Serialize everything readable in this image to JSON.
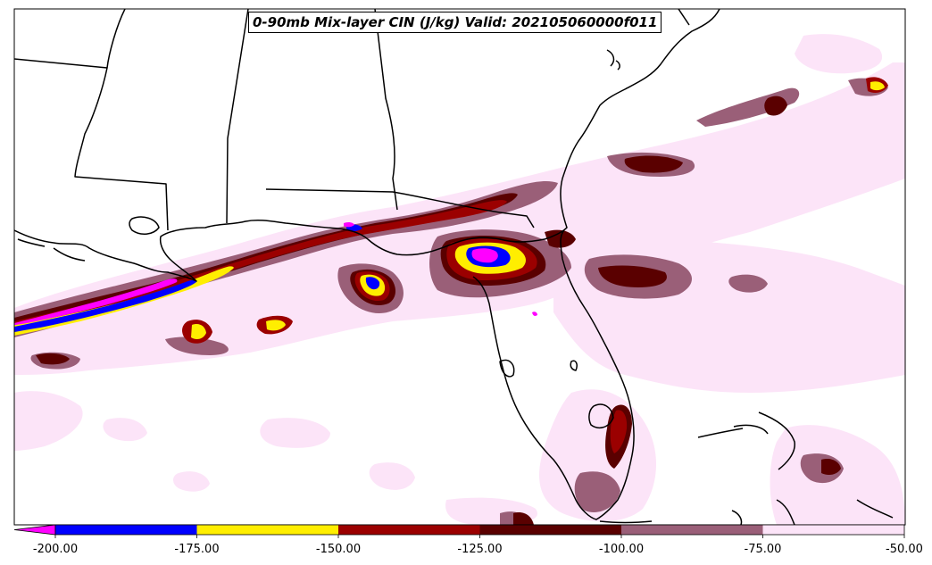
{
  "title": "0-90mb Mix-layer CIN (J/kg) Valid: 202105060000f011",
  "colorbar": {
    "ticks": [
      "-200.00",
      "-175.00",
      "-150.00",
      "-125.00",
      "-100.00",
      "-75.00",
      "-50.00"
    ],
    "bins": [
      {
        "from": -200,
        "to": -175,
        "color": "#0000ff"
      },
      {
        "from": -175,
        "to": -150,
        "color": "#ffee00"
      },
      {
        "from": -150,
        "to": -125,
        "color": "#9b0000"
      },
      {
        "from": -125,
        "to": -100,
        "color": "#5a0000"
      },
      {
        "from": -100,
        "to": -75,
        "color": "#9a5f78"
      },
      {
        "from": -75,
        "to": -50,
        "color": "#fce4f8"
      }
    ],
    "under_color": "#ff00ff",
    "extend": "min"
  },
  "region": "Southeastern United States and Gulf of Mexico",
  "colors": {
    "coastline": "#000000",
    "background": "#ffffff"
  }
}
